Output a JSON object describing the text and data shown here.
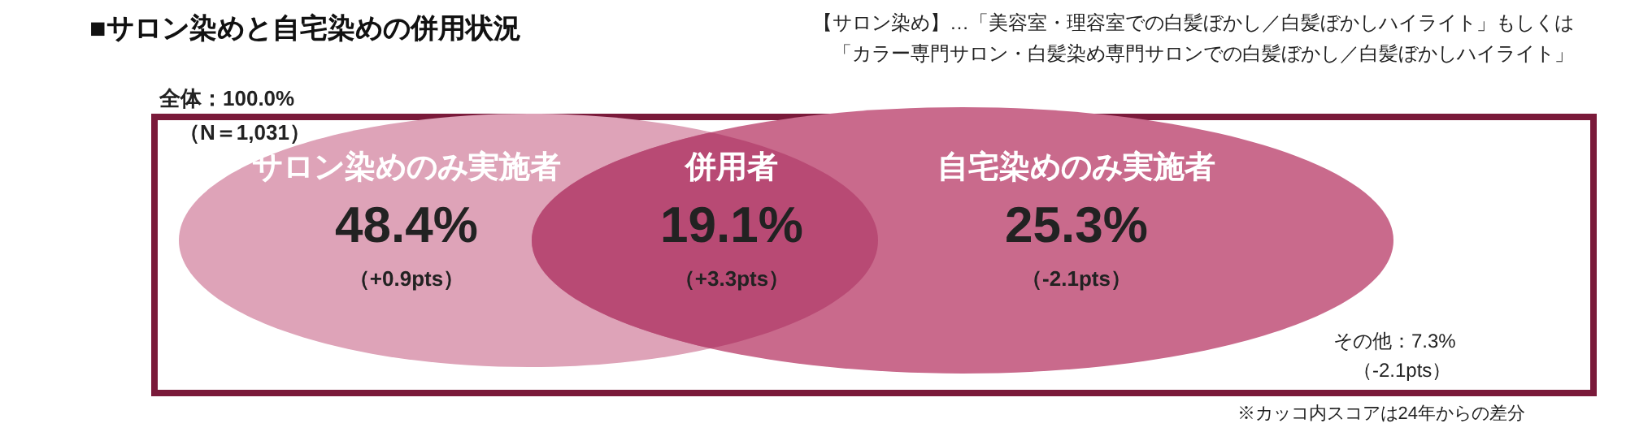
{
  "chart_data": {
    "type": "other",
    "title": "■サロン染めと自宅染めの併用状況",
    "categories": [
      "サロン染めのみ実施者",
      "併用者",
      "自宅染めのみ実施者"
    ],
    "values": [
      48.4,
      19.1,
      25.3
    ],
    "value_labels": [
      "48.4%",
      "19.1%",
      "25.3%"
    ],
    "colors": [
      "#dea3b8",
      "#b84a74",
      "#c96a8c"
    ],
    "annotations": [
      "【サロン染め】…「美容室・理容室での白髪ぼかし／白髪ぼかしハイライト」もしくは",
      "「カラー専門サロン・白髪染め専門サロンでの白髪ぼかし／白髪ぼかしハイライト」",
      "全体：100.0%",
      "（N＝1,031）",
      "その他：7.3%",
      "（-2.1pts）",
      "※カッコ内スコアは24年からの差分",
      {
        "text": "（+0.9pts）",
        "x": "サロン染めのみ実施者"
      },
      {
        "text": "（+3.3pts）",
        "x": "併用者"
      },
      {
        "text": "（-2.1pts）",
        "x": "自宅染めのみ実施者"
      }
    ]
  }
}
